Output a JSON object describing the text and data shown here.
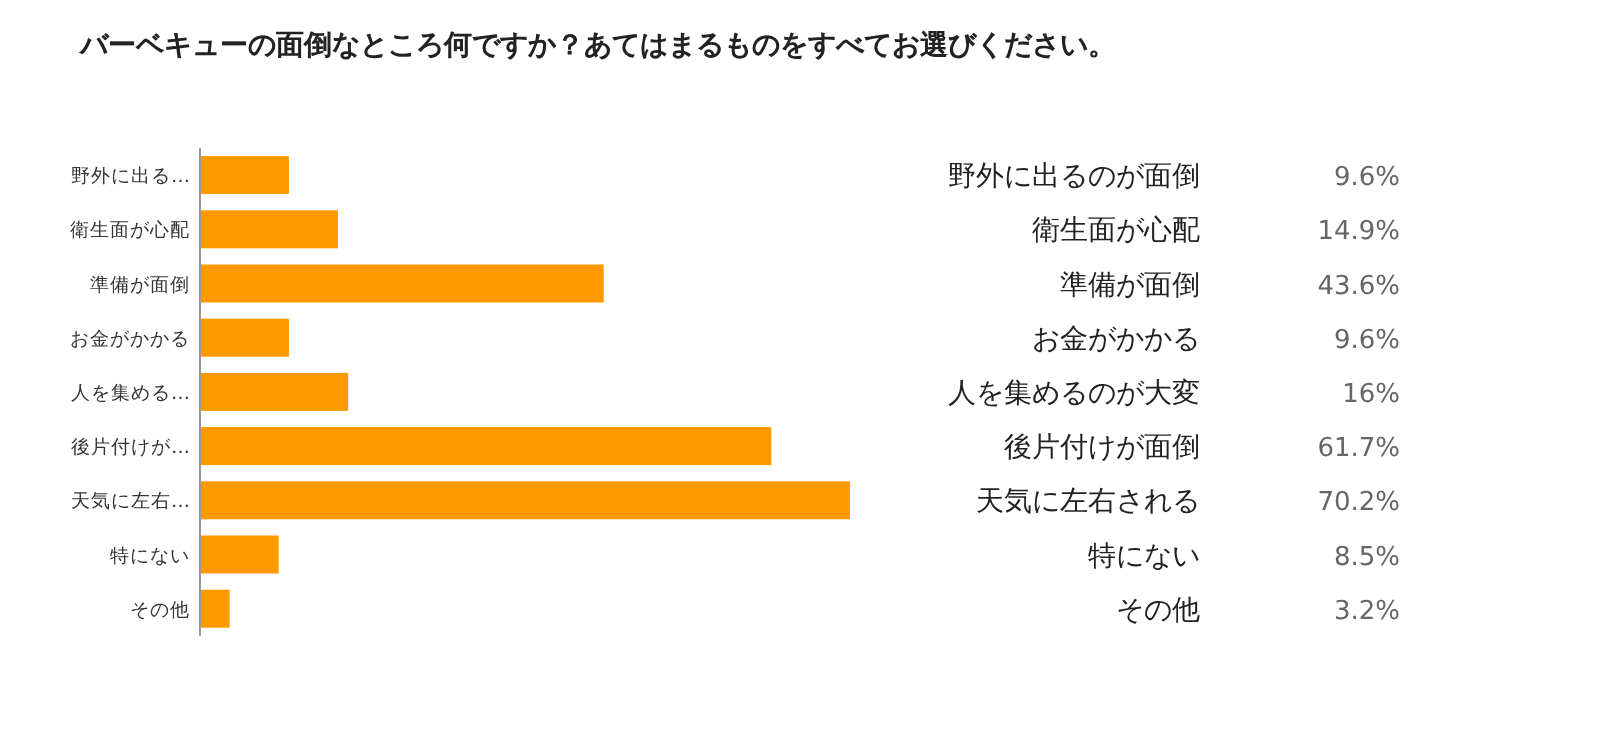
{
  "chart_data": {
    "type": "bar",
    "orientation": "horizontal",
    "title": "バーベキューの面倒なところ何ですか？あてはまるものをすべてお選びください。",
    "categories": [
      "野外に出る…",
      "衛生面が心配",
      "準備が面倒",
      "お金がかかる",
      "人を集める…",
      "後片付けが…",
      "天気に左右…",
      "特にない",
      "その他"
    ],
    "values": [
      9.6,
      14.9,
      43.6,
      9.6,
      16,
      61.7,
      70.2,
      8.5,
      3.2
    ],
    "color": "#ff9900",
    "value_labels": [
      "9.6%",
      "14.9%",
      "43.6%",
      "9.6%",
      "16%",
      "61.7%",
      "70.2%",
      "8.5%",
      "3.2%"
    ],
    "annotations": [
      "野外に出るのが面倒",
      "衛生面が心配",
      "準備が面倒",
      "お金がかかる",
      "人を集めるのが大変",
      "後片付けが面倒",
      "天気に左右される",
      "特にない",
      "その他"
    ]
  }
}
